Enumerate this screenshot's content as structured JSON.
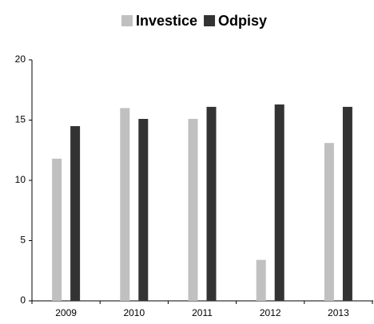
{
  "chart_data": {
    "type": "bar",
    "categories": [
      "2009",
      "2010",
      "2011",
      "2012",
      "2013"
    ],
    "series": [
      {
        "name": "Investice",
        "color": "#c0c0c0",
        "values": [
          11.8,
          16,
          15.1,
          3.4,
          13.1
        ]
      },
      {
        "name": "Odpisy",
        "color": "#333333",
        "values": [
          14.5,
          15.1,
          16.1,
          16.3,
          16.1
        ]
      }
    ],
    "ylim": [
      0,
      20
    ],
    "yticks": [
      0,
      5,
      10,
      15,
      20
    ],
    "grid": false,
    "legend": "top"
  }
}
